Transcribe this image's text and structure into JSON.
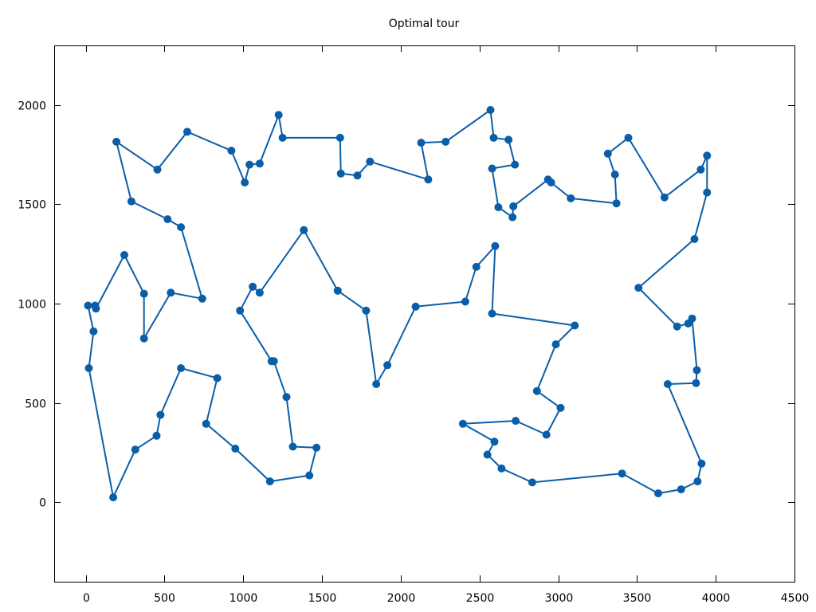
{
  "chart_data": {
    "type": "line",
    "title": "Optimal tour",
    "xlabel": "",
    "ylabel": "",
    "xlim": [
      -200,
      4500
    ],
    "ylim": [
      -400,
      2300
    ],
    "xticks": [
      0,
      500,
      1000,
      1500,
      2000,
      2500,
      3000,
      3500,
      4000,
      4500
    ],
    "yticks": [
      0,
      500,
      1000,
      1500,
      2000
    ],
    "grid": false,
    "legend": false,
    "series_color": "#0a5ea8",
    "marker": "filled-circle",
    "closed_tour": true,
    "x": [
      175,
      20,
      50,
      15,
      60,
      65,
      245,
      370,
      370,
      540,
      740,
      605,
      520,
      290,
      195,
      455,
      645,
      925,
      1010,
      1040,
      1105,
      1225,
      1250,
      1615,
      1620,
      1725,
      1805,
      2175,
      2130,
      2285,
      2570,
      2590,
      2685,
      2725,
      2580,
      2620,
      2710,
      2715,
      2935,
      2955,
      3080,
      3370,
      3360,
      3315,
      3445,
      3675,
      3905,
      3945,
      3945,
      3865,
      3510,
      3755,
      3825,
      3850,
      3880,
      3875,
      3695,
      3910,
      3885,
      3780,
      3635,
      3405,
      2835,
      2640,
      2550,
      2595,
      2395,
      2730,
      2925,
      3015,
      2865,
      2985,
      3105,
      2580,
      2600,
      2480,
      2410,
      2095,
      1915,
      1845,
      1780,
      1600,
      1385,
      1105,
      1060,
      980,
      1180,
      1195,
      1275,
      1315,
      1465,
      1420,
      1170,
      950,
      765,
      835,
      605,
      475,
      450,
      315
    ],
    "y": [
      25,
      675,
      860,
      990,
      990,
      975,
      1245,
      1050,
      825,
      1055,
      1025,
      1385,
      1425,
      1515,
      1815,
      1675,
      1865,
      1770,
      1610,
      1700,
      1705,
      1950,
      1835,
      1835,
      1655,
      1645,
      1715,
      1625,
      1810,
      1815,
      1975,
      1835,
      1825,
      1700,
      1680,
      1485,
      1435,
      1490,
      1625,
      1610,
      1530,
      1505,
      1650,
      1755,
      1835,
      1535,
      1675,
      1745,
      1560,
      1325,
      1080,
      885,
      900,
      925,
      665,
      600,
      595,
      195,
      105,
      65,
      45,
      145,
      100,
      170,
      240,
      305,
      395,
      410,
      340,
      475,
      560,
      795,
      890,
      950,
      1290,
      1185,
      1010,
      985,
      690,
      595,
      965,
      1065,
      1370,
      1055,
      1085,
      965,
      710,
      710,
      530,
      280,
      275,
      135,
      105,
      270,
      395,
      625,
      675,
      440,
      335,
      265
    ]
  }
}
